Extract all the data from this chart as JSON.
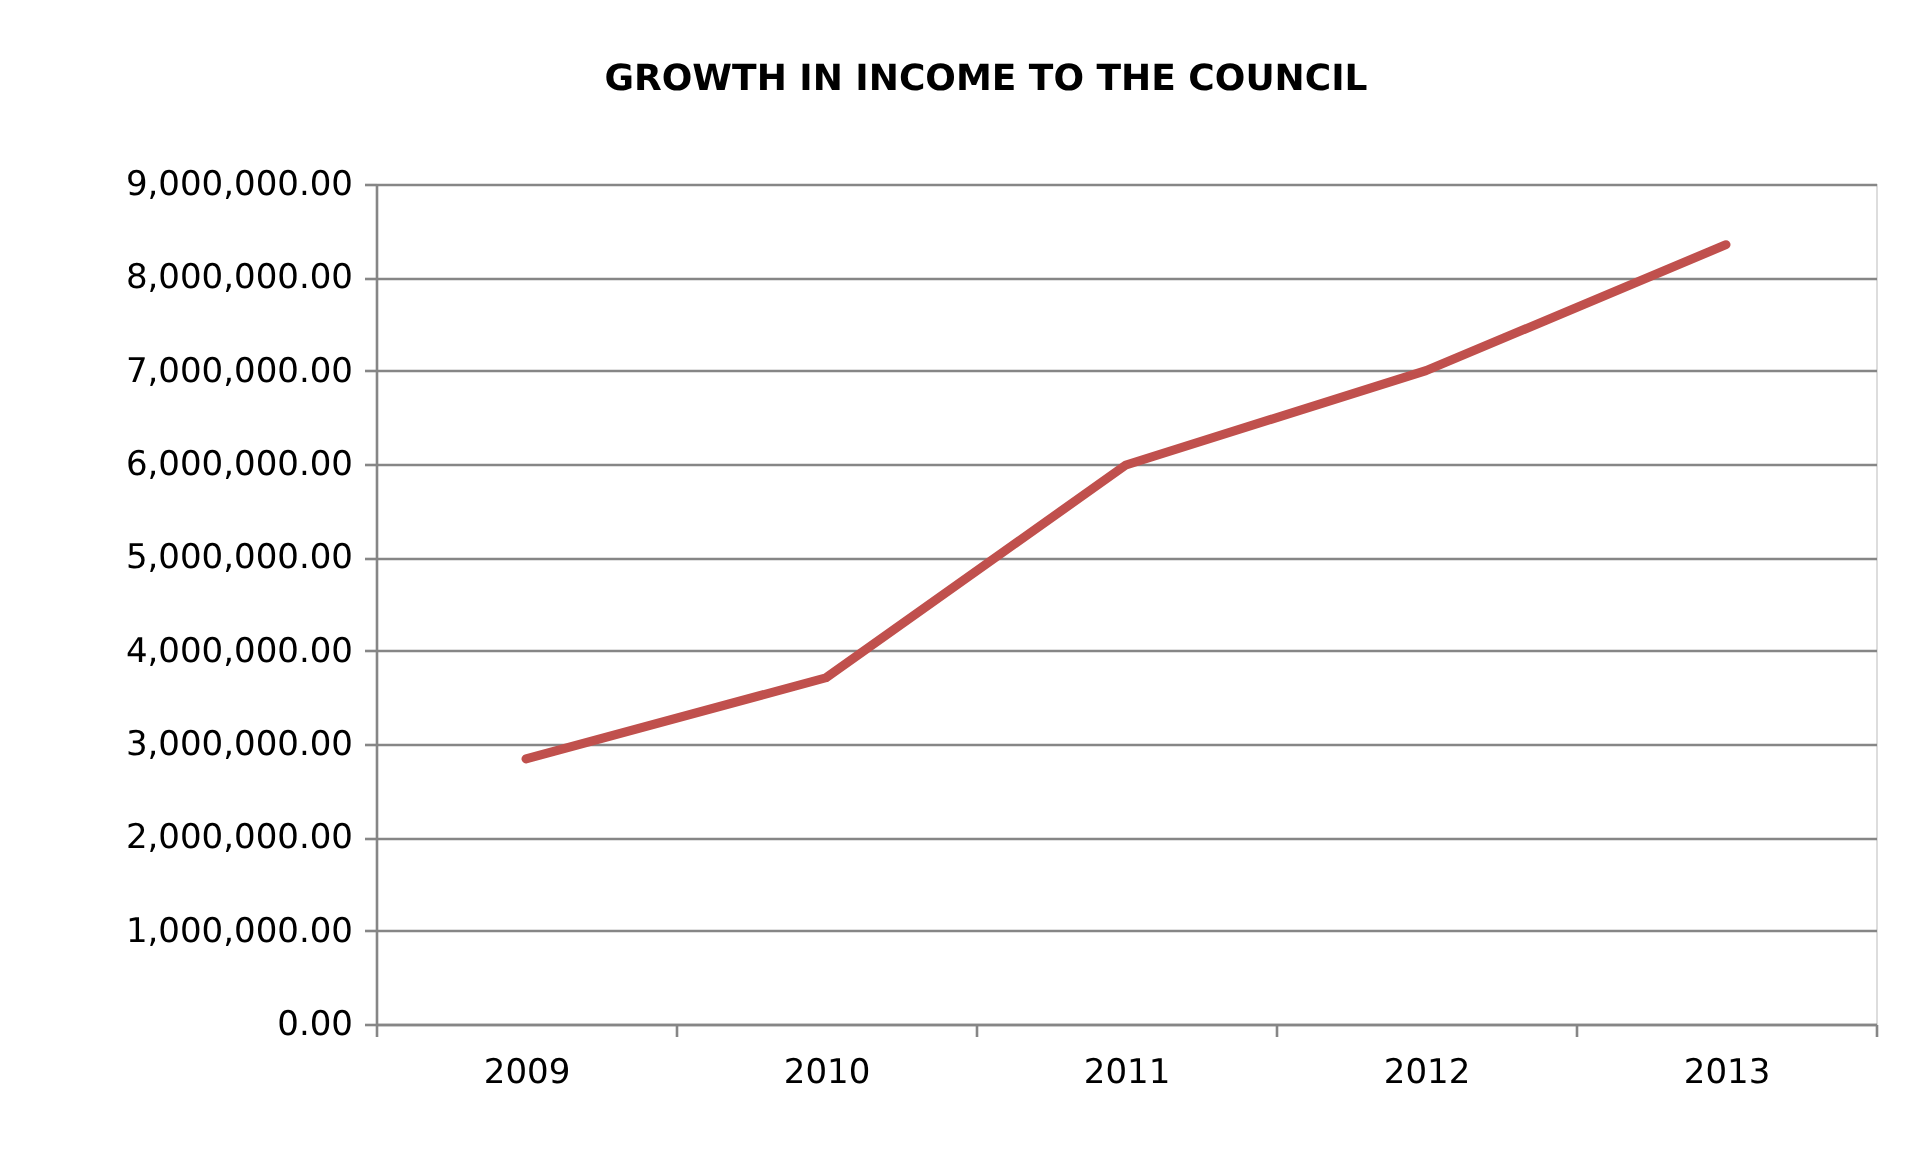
{
  "chart_data": {
    "type": "line",
    "title": "GROWTH IN INCOME TO THE COUNCIL",
    "categories": [
      "2009",
      "2010",
      "2011",
      "2012",
      "2013"
    ],
    "series": [
      {
        "color": "#c0504d",
        "values": [
          2840000,
          3710000,
          5990000,
          7000000,
          8350000
        ]
      }
    ],
    "ylim": [
      0,
      9000000
    ],
    "yticks": [
      {
        "value": 0,
        "label": "0.00"
      },
      {
        "value": 1000000,
        "label": "1,000,000.00"
      },
      {
        "value": 2000000,
        "label": "2,000,000.00"
      },
      {
        "value": 3000000,
        "label": "3,000,000.00"
      },
      {
        "value": 4000000,
        "label": "4,000,000.00"
      },
      {
        "value": 5000000,
        "label": "5,000,000.00"
      },
      {
        "value": 6000000,
        "label": "6,000,000.00"
      },
      {
        "value": 7000000,
        "label": "7,000,000.00"
      },
      {
        "value": 8000000,
        "label": "8,000,000.00"
      },
      {
        "value": 9000000,
        "label": "9,000,000.00"
      }
    ],
    "grid": "y",
    "legend": false,
    "marker": "none",
    "line_style": "solid"
  }
}
